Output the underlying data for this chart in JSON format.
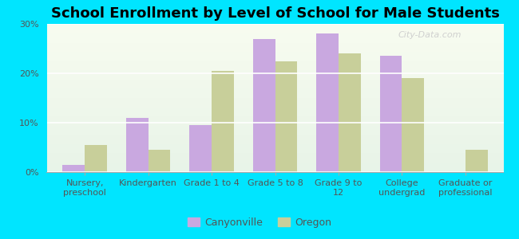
{
  "title": "School Enrollment by Level of School for Male Students",
  "categories": [
    "Nursery,\npreschool",
    "Kindergarten",
    "Grade 1 to 4",
    "Grade 5 to 8",
    "Grade 9 to\n12",
    "College\nundergrad",
    "Graduate or\nprofessional"
  ],
  "canyonville": [
    1.5,
    11.0,
    9.5,
    27.0,
    28.0,
    23.5,
    0.0
  ],
  "oregon": [
    5.5,
    4.5,
    20.5,
    22.5,
    24.0,
    19.0,
    4.5
  ],
  "color_canyonville": "#c9a8e0",
  "color_oregon": "#c8cf9a",
  "background_color": "#00e5ff",
  "ylim": [
    0,
    30
  ],
  "yticks": [
    0,
    10,
    20,
    30
  ],
  "yticklabels": [
    "0%",
    "10%",
    "20%",
    "30%"
  ],
  "legend_labels": [
    "Canyonville",
    "Oregon"
  ],
  "title_fontsize": 13,
  "tick_fontsize": 8,
  "legend_fontsize": 9,
  "bar_width": 0.35,
  "watermark": "City-Data.com",
  "plot_bg_top": "#f8fcf0",
  "plot_bg_bottom": "#e8f4e8"
}
